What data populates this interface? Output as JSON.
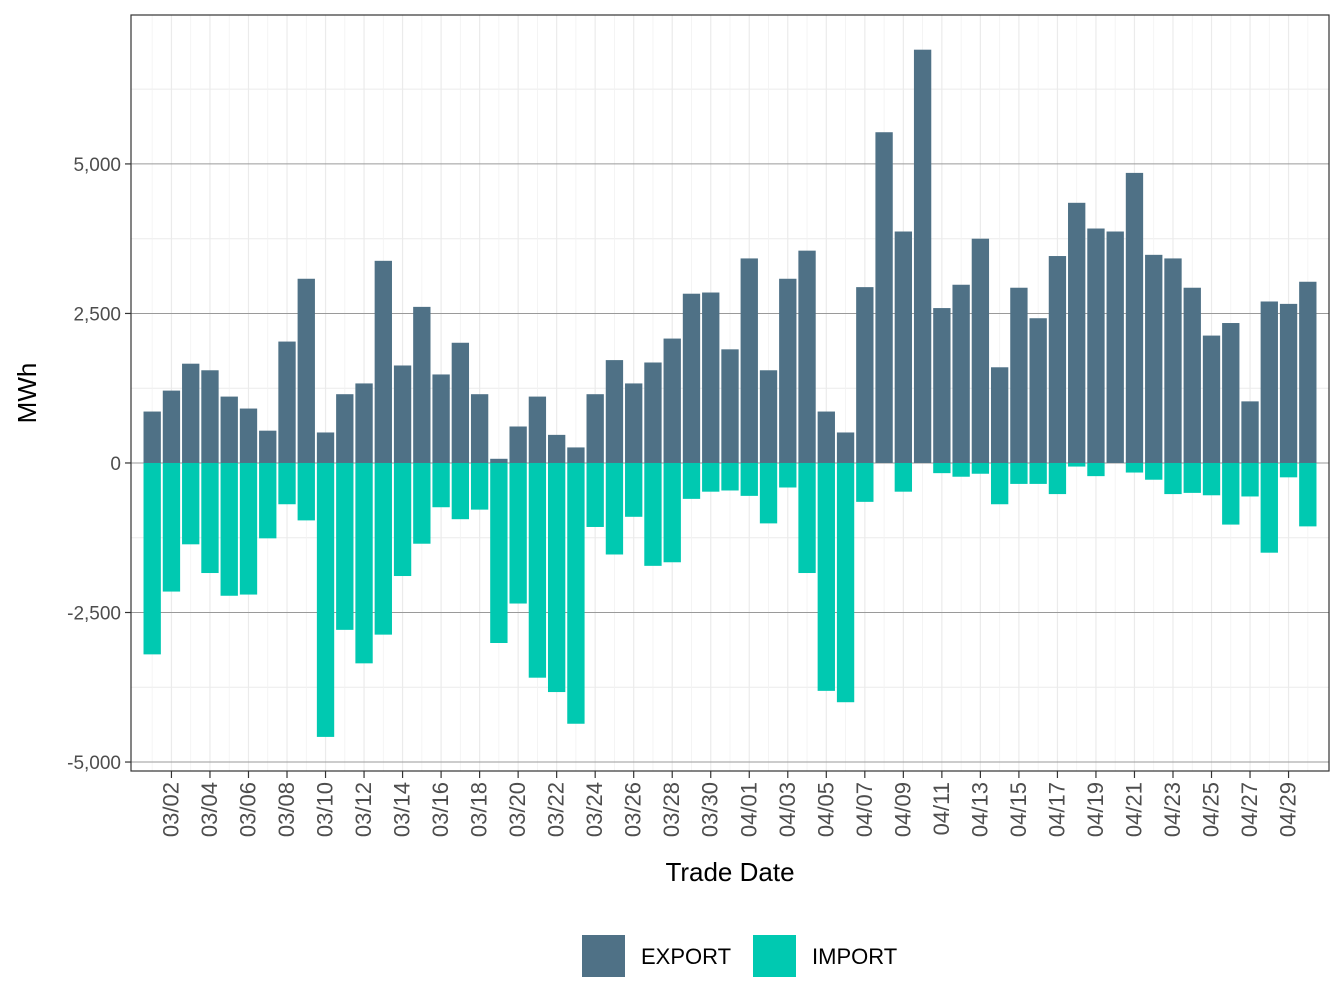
{
  "chart_data": {
    "type": "bar",
    "stacked": "diverging",
    "xlabel": "Trade Date",
    "ylabel": "MWh",
    "ylim": [
      -5150,
      7490
    ],
    "yticks": [
      -5000,
      -2500,
      0,
      2500,
      5000
    ],
    "ytick_labels": [
      "-5,000",
      "-2,500",
      "0",
      "2,500",
      "5,000"
    ],
    "x_tick_labels": [
      "03/02",
      "03/04",
      "03/06",
      "03/08",
      "03/10",
      "03/12",
      "03/14",
      "03/16",
      "03/18",
      "03/20",
      "03/22",
      "03/24",
      "03/26",
      "03/28",
      "03/30",
      "04/01",
      "04/03",
      "04/05",
      "04/07",
      "04/09",
      "04/11",
      "04/13",
      "04/15",
      "04/17",
      "04/19",
      "04/21",
      "04/23",
      "04/25",
      "04/27",
      "04/29"
    ],
    "x_tick_indices": [
      1,
      3,
      5,
      7,
      9,
      11,
      13,
      15,
      17,
      19,
      21,
      23,
      25,
      27,
      29,
      31,
      33,
      35,
      37,
      39,
      41,
      43,
      45,
      47,
      49,
      51,
      53,
      55,
      57,
      59
    ],
    "categories": [
      "03/01",
      "03/02",
      "03/03",
      "03/04",
      "03/05",
      "03/06",
      "03/07",
      "03/08",
      "03/09",
      "03/10",
      "03/11",
      "03/12",
      "03/13",
      "03/14",
      "03/15",
      "03/16",
      "03/17",
      "03/18",
      "03/19",
      "03/20",
      "03/21",
      "03/22",
      "03/23",
      "03/24",
      "03/25",
      "03/26",
      "03/27",
      "03/28",
      "03/29",
      "03/30",
      "03/31",
      "04/01",
      "04/02",
      "04/03",
      "04/04",
      "04/05",
      "04/06",
      "04/07",
      "04/08",
      "04/09",
      "04/10",
      "04/11",
      "04/12",
      "04/13",
      "04/14",
      "04/15",
      "04/16",
      "04/17",
      "04/18",
      "04/19",
      "04/20",
      "04/21",
      "04/22",
      "04/23",
      "04/24",
      "04/25",
      "04/26",
      "04/27",
      "04/28",
      "04/29",
      "04/30"
    ],
    "series": [
      {
        "name": "EXPORT",
        "color": "#4f7186",
        "values": [
          860,
          1210,
          1660,
          1550,
          1110,
          910,
          540,
          2030,
          3080,
          510,
          1150,
          1330,
          3380,
          1630,
          2610,
          1480,
          2010,
          1150,
          70,
          610,
          1110,
          470,
          260,
          1150,
          1720,
          1330,
          1680,
          2080,
          2830,
          2850,
          1900,
          3420,
          1550,
          3080,
          3550,
          860,
          510,
          2940,
          5530,
          3870,
          6910,
          2590,
          2980,
          3750,
          1600,
          2930,
          2420,
          3460,
          4350,
          3920,
          3870,
          4850,
          3480,
          3420,
          2930,
          2130,
          2340,
          1030,
          2700,
          2660,
          3030
        ]
      },
      {
        "name": "IMPORT",
        "color": "#00c9b1",
        "values": [
          -3200,
          -2150,
          -1360,
          -1840,
          -2220,
          -2200,
          -1260,
          -690,
          -960,
          -4580,
          -2790,
          -3350,
          -2870,
          -1890,
          -1350,
          -740,
          -940,
          -780,
          -3010,
          -2350,
          -3590,
          -3830,
          -4360,
          -1070,
          -1530,
          -900,
          -1720,
          -1660,
          -600,
          -480,
          -460,
          -550,
          -1010,
          -410,
          -1840,
          -3810,
          -4000,
          -650,
          0,
          -480,
          0,
          -170,
          -230,
          -180,
          -690,
          -350,
          -350,
          -520,
          -60,
          -220,
          0,
          -160,
          -280,
          -520,
          -500,
          -540,
          -1030,
          -560,
          -1500,
          -240,
          -1060
        ]
      }
    ],
    "grid": true,
    "legend_position": "bottom"
  }
}
